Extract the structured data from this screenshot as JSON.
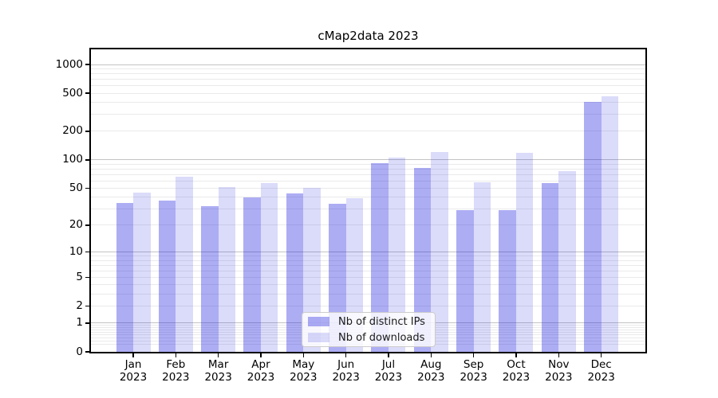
{
  "chart_data": {
    "type": "bar",
    "title": "cMap2data 2023",
    "x_categories": [
      "Jan",
      "Feb",
      "Mar",
      "Apr",
      "May",
      "Jun",
      "Jul",
      "Aug",
      "Sep",
      "Oct",
      "Nov",
      "Dec"
    ],
    "x_year_label": "2023",
    "series": [
      {
        "name": "Nb of distinct IPs",
        "color": "rgba(28,28,225,0.36)",
        "values": [
          35,
          37,
          32,
          40,
          44,
          34,
          92,
          82,
          29,
          29,
          57,
          410
        ]
      },
      {
        "name": "Nb of downloads",
        "color": "rgba(28,28,225,0.16)",
        "values": [
          45,
          66,
          52,
          57,
          51,
          39,
          105,
          120,
          58,
          119,
          76,
          465
        ]
      }
    ],
    "y_scale": "log10(1+x)",
    "y_ticks": [
      0,
      1,
      2,
      5,
      10,
      20,
      50,
      100,
      200,
      500,
      1000
    ],
    "ylim": [
      0,
      1440
    ],
    "grid": {
      "major_values": [
        1,
        10,
        100,
        1000
      ],
      "minor_values": [
        0.2,
        0.3,
        0.4,
        0.5,
        0.6,
        0.7,
        0.8,
        0.9,
        2,
        3,
        4,
        5,
        6,
        7,
        8,
        9,
        20,
        30,
        40,
        50,
        60,
        70,
        80,
        90,
        200,
        300,
        400,
        500,
        600,
        700,
        800,
        900
      ],
      "major_color": "#c3c3c3",
      "minor_color": "#eaeaea"
    },
    "legend": {
      "position": "lower center",
      "entries": [
        "Nb of distinct IPs",
        "Nb of downloads"
      ]
    }
  }
}
